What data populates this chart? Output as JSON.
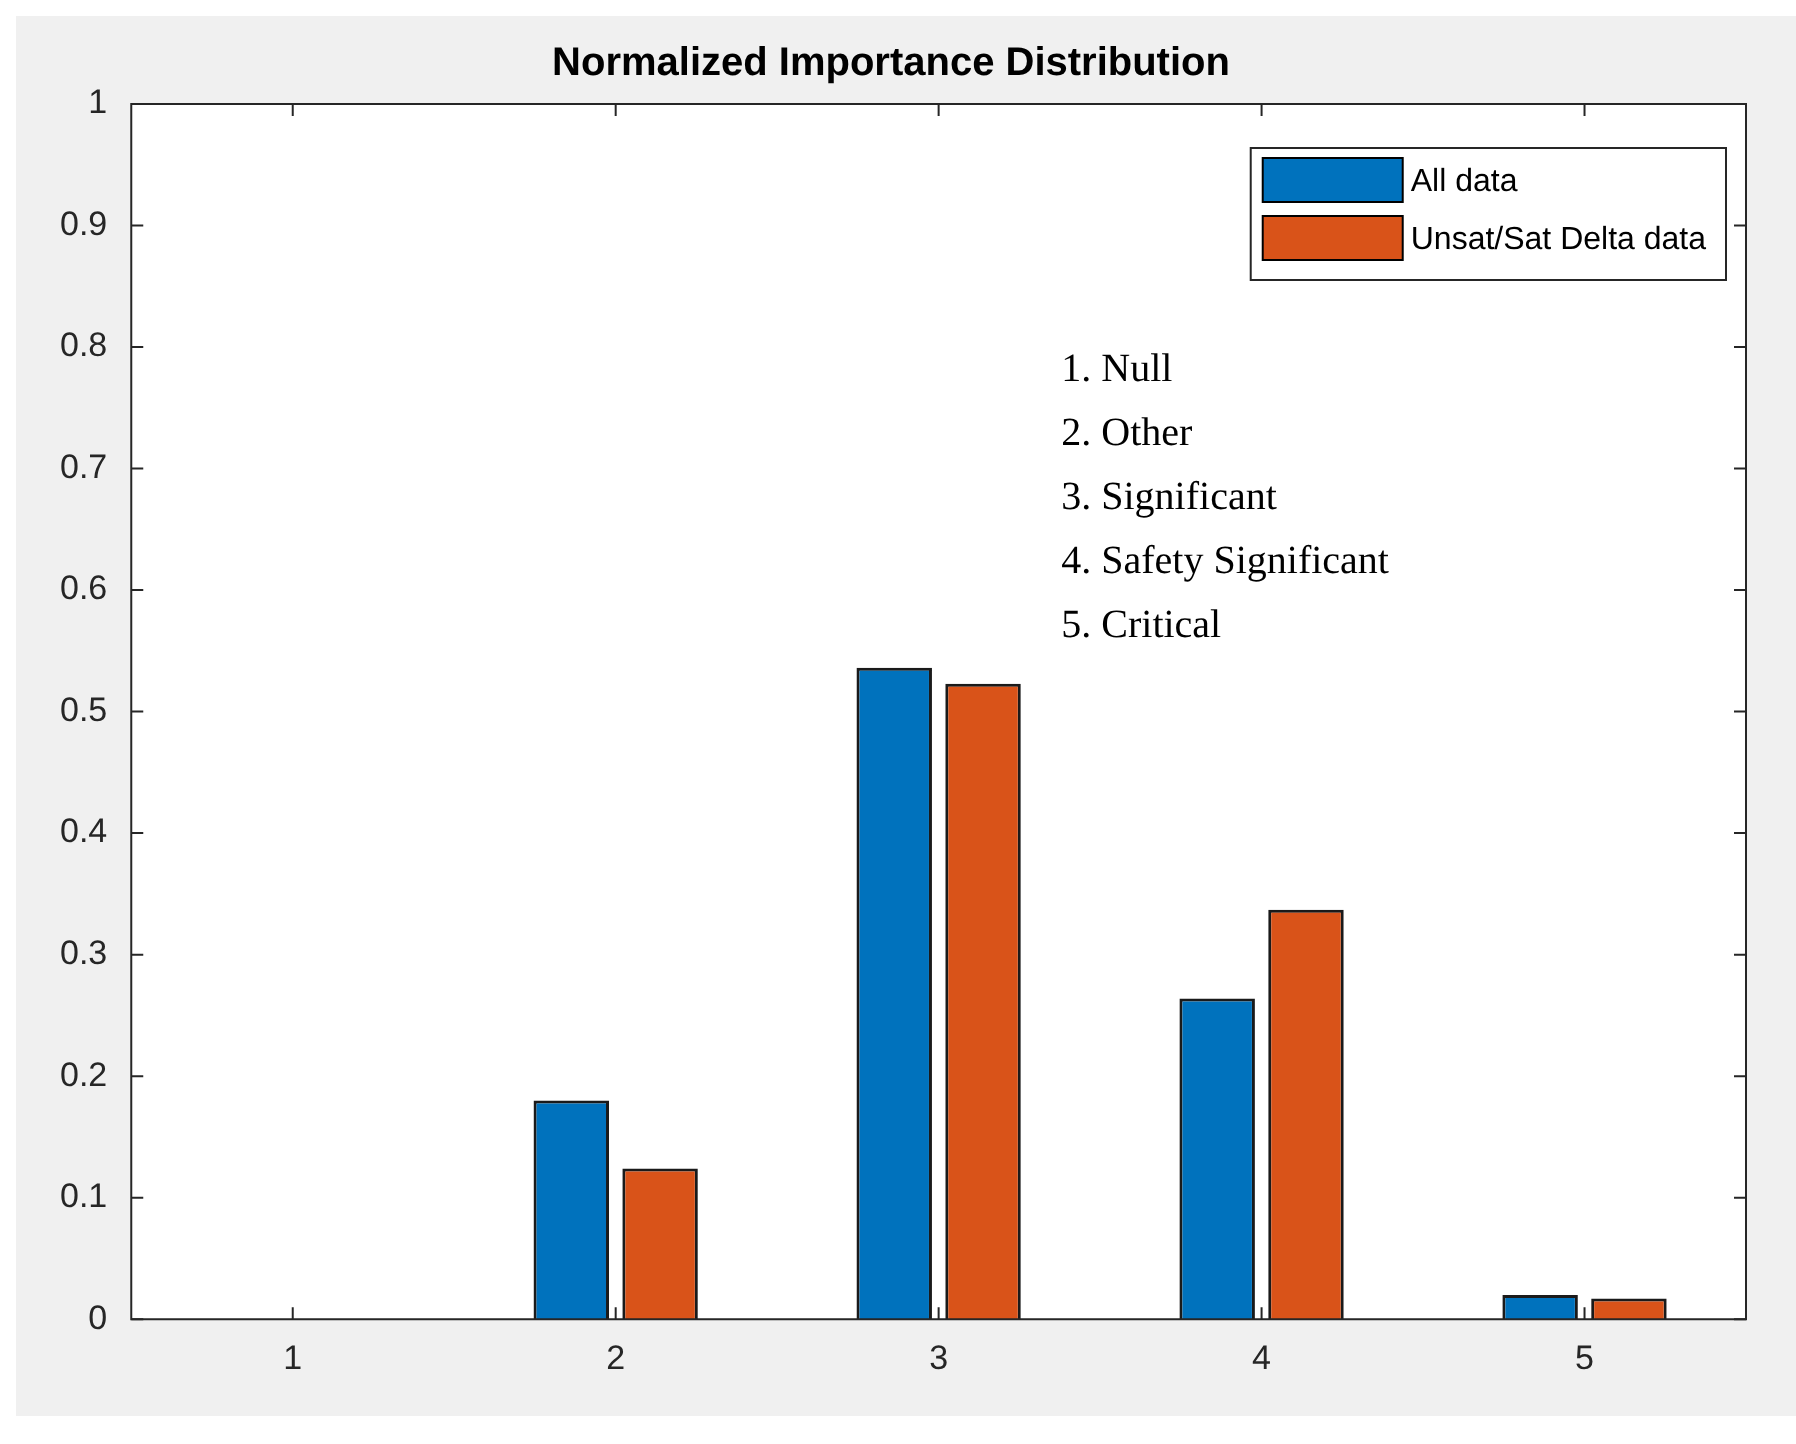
{
  "chart_data": {
    "type": "bar",
    "title": "Normalized Importance Distribution",
    "categories": [
      "1",
      "2",
      "3",
      "4",
      "5"
    ],
    "series": [
      {
        "name": "All data",
        "color": "#0072bd",
        "values": [
          0,
          0.18,
          0.536,
          0.264,
          0.02
        ]
      },
      {
        "name": "Unsat/Sat Delta data",
        "color": "#d95319",
        "values": [
          0,
          0.124,
          0.523,
          0.337,
          0.017
        ]
      }
    ],
    "ylim": [
      0,
      1
    ],
    "yticks": [
      0,
      0.1,
      0.2,
      0.3,
      0.4,
      0.5,
      0.6,
      0.7,
      0.8,
      0.9,
      1
    ],
    "grid": false,
    "legend": "top right",
    "annotations": [
      "1. Null",
      "2. Other",
      "3. Significant",
      "4. Safety Significant",
      "5. Critical"
    ]
  }
}
